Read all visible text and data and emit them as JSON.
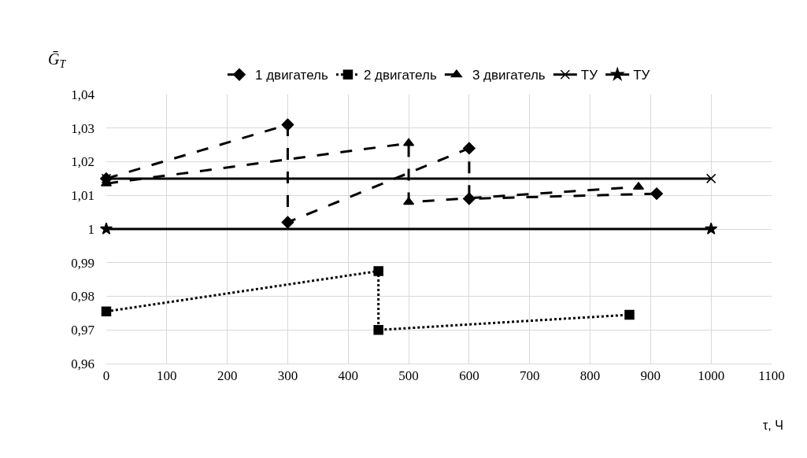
{
  "chart_data": {
    "type": "line",
    "xlabel": "τ, Ч",
    "ylabel": "Ḡ$_{Т}$",
    "series": [
      {
        "name": "1 двигатель",
        "color": "#000000",
        "marker": "diamond",
        "line_style": "dashed",
        "x": [
          0,
          300,
          300,
          600,
          600,
          910
        ],
        "values": [
          1.015,
          1.031,
          1.002,
          1.024,
          1.009,
          1.0105
        ]
      },
      {
        "name": "2 двигатель",
        "color": "#000000",
        "marker": "square",
        "line_style": "dotted",
        "x": [
          0,
          450,
          450,
          865
        ],
        "values": [
          0.9755,
          0.9875,
          0.97,
          0.9745
        ]
      },
      {
        "name": "3 двигатель",
        "color": "#000000",
        "marker": "triangle",
        "line_style": "dashed",
        "x": [
          0,
          500,
          500,
          880
        ],
        "values": [
          1.0135,
          1.0255,
          1.008,
          1.0125
        ]
      },
      {
        "name": "ТУ",
        "color": "#000000",
        "marker": "cross",
        "line_style": "solid",
        "x": [
          0,
          1000
        ],
        "values": [
          1.015,
          1.015
        ]
      },
      {
        "name": "ТУ",
        "color": "#000000",
        "marker": "star",
        "line_style": "solid",
        "x": [
          0,
          1000
        ],
        "values": [
          1,
          1
        ]
      }
    ],
    "xlim": [
      0,
      1100
    ],
    "xticks": [
      0,
      100,
      200,
      300,
      400,
      500,
      600,
      700,
      800,
      900,
      1000,
      1100
    ],
    "ylim": [
      0.96,
      1.04
    ],
    "yticks": [
      {
        "value": 0.96,
        "label": "0,96"
      },
      {
        "value": 0.97,
        "label": "0,97"
      },
      {
        "value": 0.98,
        "label": "0,98"
      },
      {
        "value": 0.99,
        "label": "0,99"
      },
      {
        "value": 1,
        "label": "1"
      },
      {
        "value": 1.01,
        "label": "1,01"
      },
      {
        "value": 1.02,
        "label": "1,02"
      },
      {
        "value": 1.03,
        "label": "1,03"
      },
      {
        "value": 1.04,
        "label": "1,04"
      }
    ],
    "grid": true,
    "legend": "top"
  }
}
